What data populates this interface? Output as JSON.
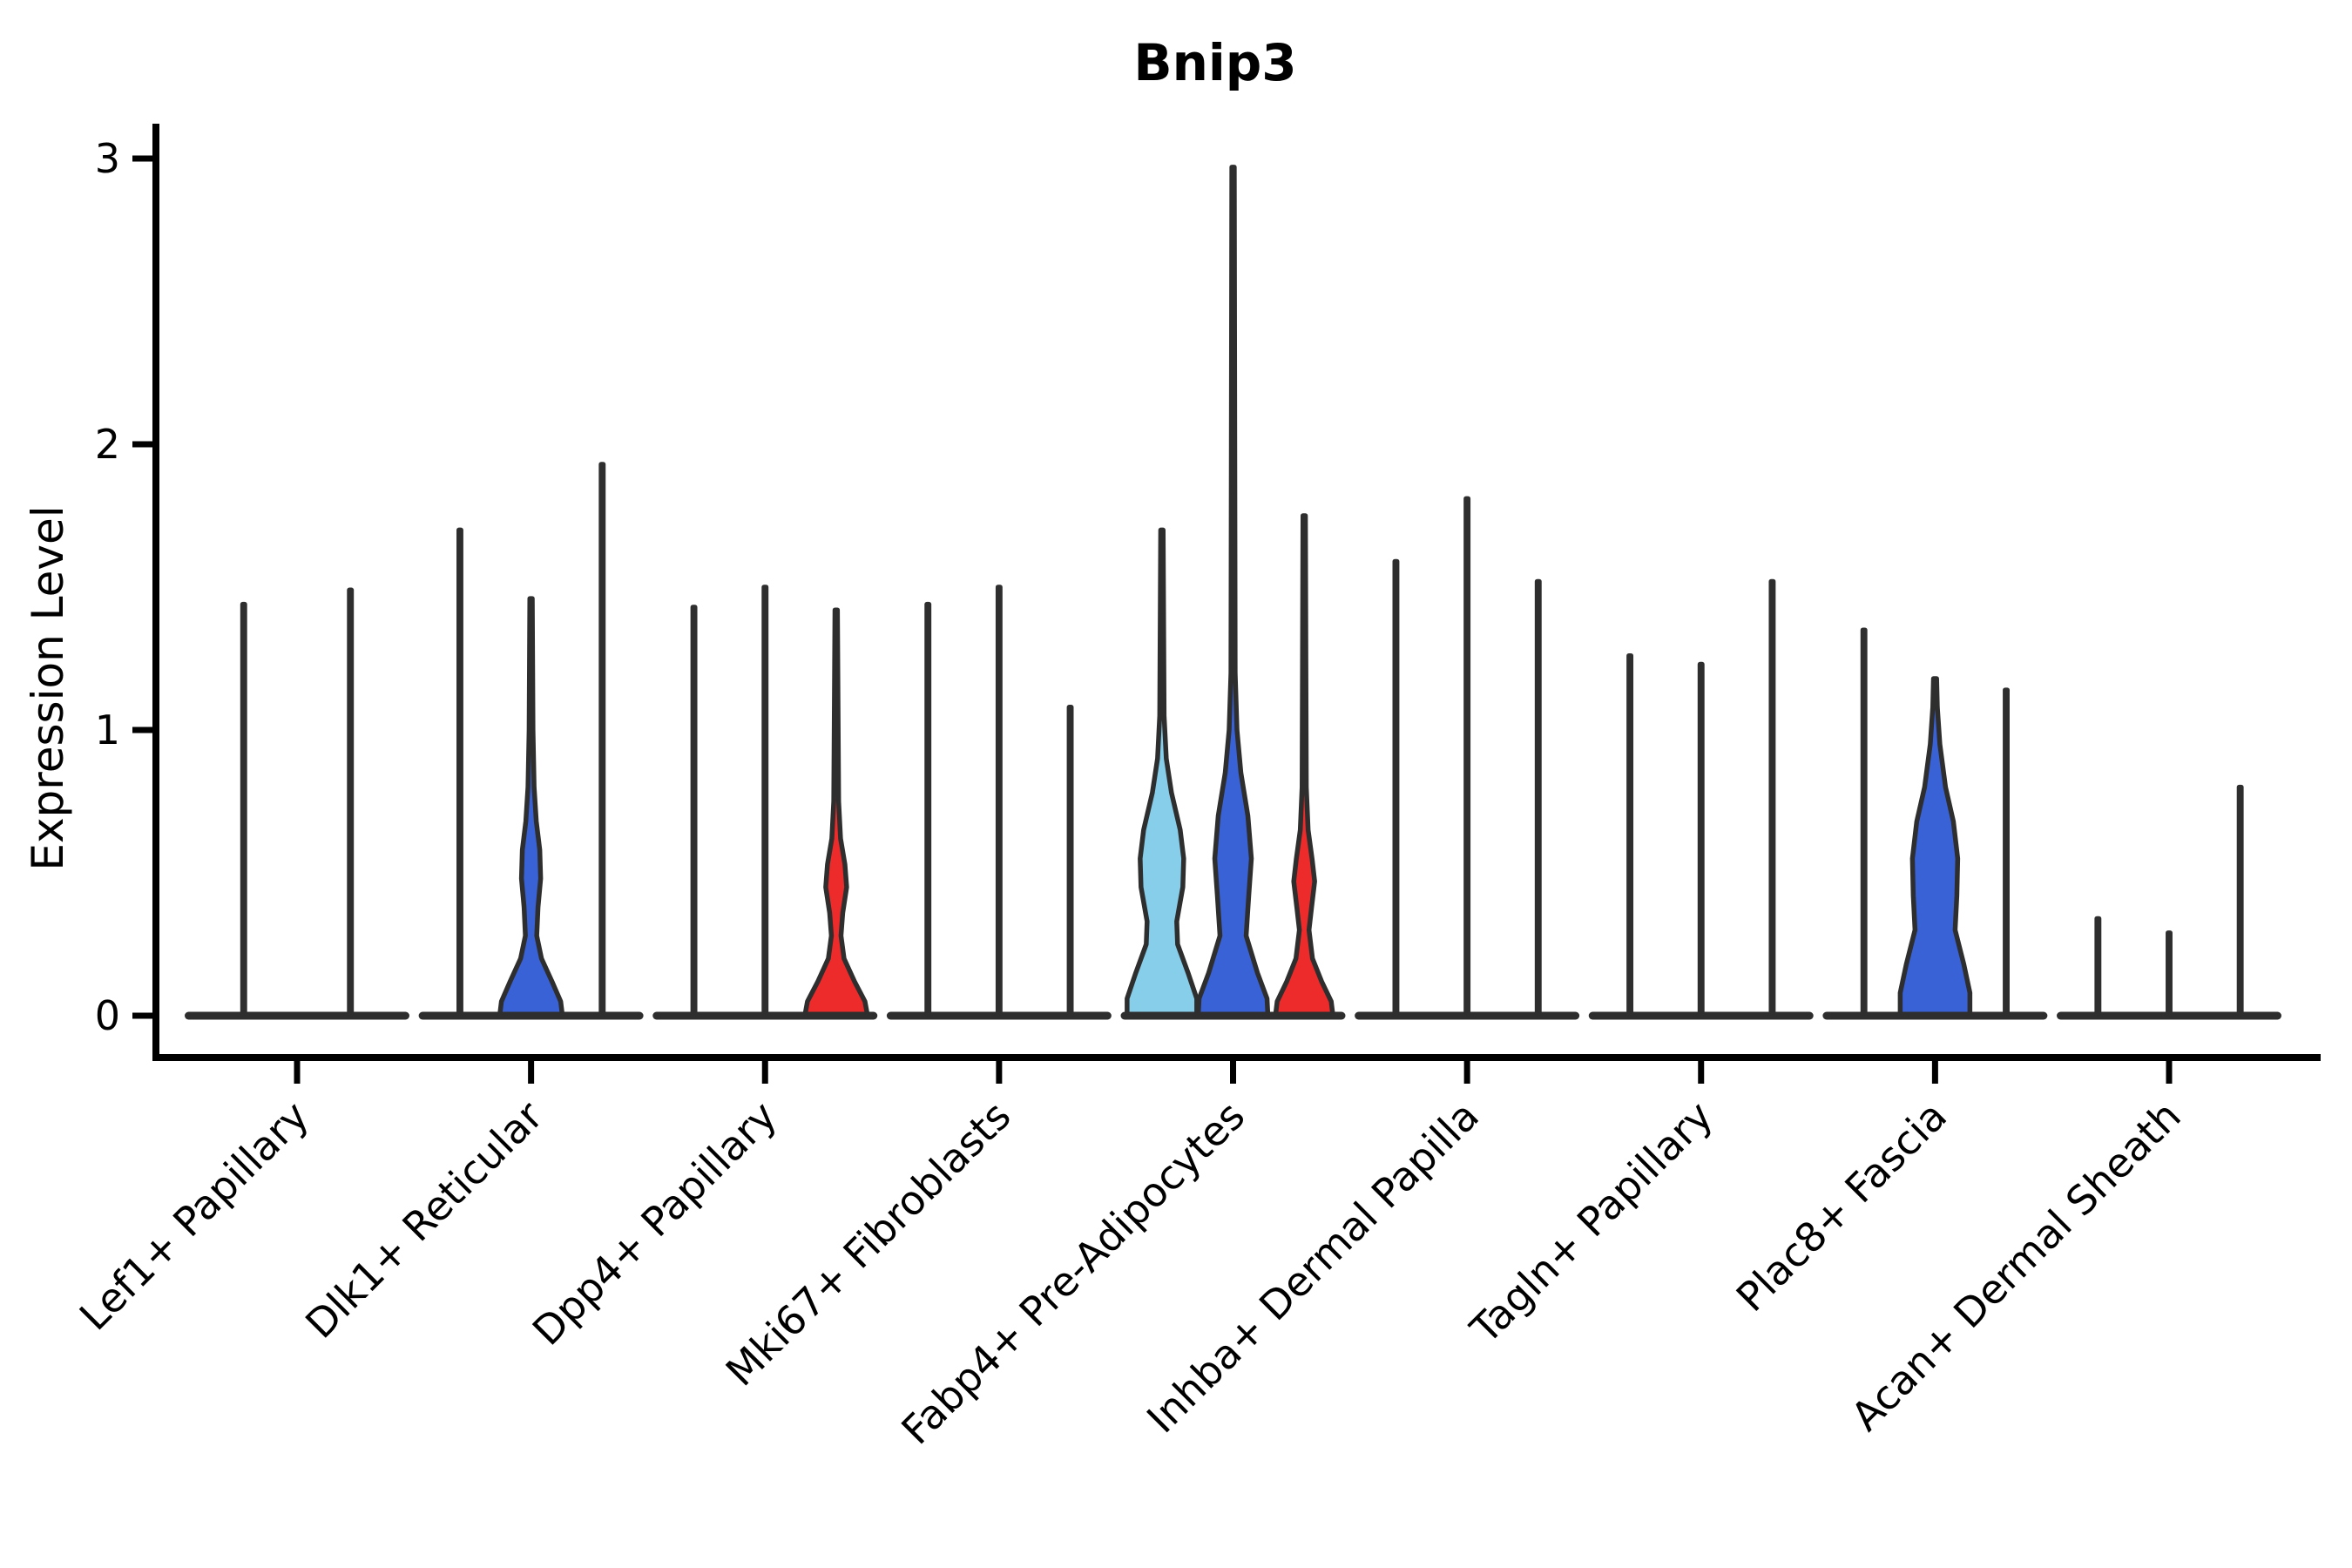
{
  "chart_data": {
    "type": "violin",
    "title": "Bnip3",
    "ylabel": "Expression Level",
    "xlabel": "",
    "ylim": [
      0,
      3.12
    ],
    "yticks": [
      "0",
      "1",
      "2",
      "3"
    ],
    "grid": "off",
    "legend": "none",
    "palette": {
      "dark": "#2e2e2e",
      "light_blue": "#87CEEB",
      "blue": "#3A62D7",
      "red": "#EE2B2B",
      "outline": "#2e2e2e",
      "axis": "#000000"
    },
    "categories": [
      "Lef1+ Papillary",
      "Dlk1+ Reticular",
      "Dpp4+ Papillary",
      "Mki67+ Fibroblasts",
      "Fabp4+ Pre-Adipocytes",
      "Inhba+ Dermal Papilla",
      "Tagln+ Papillary",
      "Plac8+ Fascia",
      "Acan+ Dermal Sheath"
    ],
    "groups": [
      {
        "label": "Lef1+ Papillary",
        "violins": [
          {
            "max": 1.44,
            "color": "dark"
          },
          {
            "max": 1.49,
            "color": "dark"
          }
        ]
      },
      {
        "label": "Dlk1+ Reticular",
        "violins": [
          {
            "max": 1.7,
            "color": "dark"
          },
          {
            "max": 1.46,
            "color": "blue",
            "profile": [
              [
                0,
                36
              ],
              [
                0.05,
                34
              ],
              [
                0.12,
                24
              ],
              [
                0.2,
                12
              ],
              [
                0.28,
                6.5
              ],
              [
                0.38,
                8
              ],
              [
                0.48,
                11
              ],
              [
                0.58,
                10
              ],
              [
                0.68,
                6
              ],
              [
                0.8,
                3.5
              ],
              [
                1.0,
                2.2
              ],
              [
                1.46,
                1.4
              ]
            ]
          },
          {
            "max": 1.93,
            "color": "dark"
          }
        ]
      },
      {
        "label": "Dpp4+ Papillary",
        "violins": [
          {
            "max": 1.43,
            "color": "dark"
          },
          {
            "max": 1.5,
            "color": "dark"
          },
          {
            "max": 1.42,
            "color": "red",
            "profile": [
              [
                0,
                36
              ],
              [
                0.05,
                33
              ],
              [
                0.12,
                21
              ],
              [
                0.2,
                9
              ],
              [
                0.28,
                5.5
              ],
              [
                0.36,
                7.5
              ],
              [
                0.45,
                12
              ],
              [
                0.53,
                10
              ],
              [
                0.62,
                5
              ],
              [
                0.75,
                2.8
              ],
              [
                1.42,
                1.4
              ]
            ]
          }
        ]
      },
      {
        "label": "Mki67+ Fibroblasts",
        "violins": [
          {
            "max": 1.44,
            "color": "dark"
          },
          {
            "max": 1.5,
            "color": "dark"
          },
          {
            "max": 1.08,
            "color": "dark"
          }
        ]
      },
      {
        "label": "Fabp4+ Pre-Adipocytes",
        "violins": [
          {
            "max": 1.7,
            "color": "light_blue",
            "profile": [
              [
                0,
                40
              ],
              [
                0.06,
                40
              ],
              [
                0.15,
                30
              ],
              [
                0.25,
                18
              ],
              [
                0.33,
                17
              ],
              [
                0.45,
                24
              ],
              [
                0.55,
                25
              ],
              [
                0.65,
                21
              ],
              [
                0.78,
                11
              ],
              [
                0.9,
                5
              ],
              [
                1.05,
                2.5
              ],
              [
                1.7,
                1.4
              ]
            ]
          },
          {
            "max": 2.97,
            "color": "blue",
            "profile": [
              [
                0,
                40
              ],
              [
                0.06,
                39
              ],
              [
                0.15,
                28
              ],
              [
                0.28,
                15
              ],
              [
                0.42,
                18
              ],
              [
                0.55,
                21
              ],
              [
                0.7,
                17
              ],
              [
                0.85,
                9
              ],
              [
                1.0,
                4.5
              ],
              [
                1.2,
                2.4
              ],
              [
                2.97,
                1.4
              ]
            ]
          },
          {
            "max": 1.75,
            "color": "red",
            "profile": [
              [
                0,
                33
              ],
              [
                0.05,
                31
              ],
              [
                0.12,
                20
              ],
              [
                0.2,
                9.5
              ],
              [
                0.3,
                5.5
              ],
              [
                0.38,
                8.5
              ],
              [
                0.47,
                12
              ],
              [
                0.55,
                9
              ],
              [
                0.65,
                4.5
              ],
              [
                0.8,
                2.4
              ],
              [
                1.75,
                1.4
              ]
            ]
          }
        ]
      },
      {
        "label": "Inhba+ Dermal Papilla",
        "violins": [
          {
            "max": 1.59,
            "color": "dark"
          },
          {
            "max": 1.81,
            "color": "dark"
          },
          {
            "max": 1.52,
            "color": "dark"
          }
        ]
      },
      {
        "label": "Tagln+ Papillary",
        "violins": [
          {
            "max": 1.26,
            "color": "dark"
          },
          {
            "max": 1.23,
            "color": "dark"
          },
          {
            "max": 1.52,
            "color": "dark"
          }
        ]
      },
      {
        "label": "Plac8+ Fascia",
        "violins": [
          {
            "max": 1.35,
            "color": "dark"
          },
          {
            "max": 1.18,
            "color": "blue",
            "profile": [
              [
                0,
                40
              ],
              [
                0.08,
                40
              ],
              [
                0.18,
                33
              ],
              [
                0.3,
                23
              ],
              [
                0.42,
                25
              ],
              [
                0.55,
                26
              ],
              [
                0.68,
                21
              ],
              [
                0.8,
                12
              ],
              [
                0.95,
                5.5
              ],
              [
                1.08,
                2.6
              ],
              [
                1.18,
                1.8
              ]
            ]
          },
          {
            "max": 1.14,
            "color": "dark"
          }
        ]
      },
      {
        "label": "Acan+ Dermal Sheath",
        "violins": [
          {
            "max": 0.34,
            "color": "dark"
          },
          {
            "max": 0.29,
            "color": "dark"
          },
          {
            "max": 0.8,
            "color": "dark"
          }
        ]
      }
    ]
  }
}
